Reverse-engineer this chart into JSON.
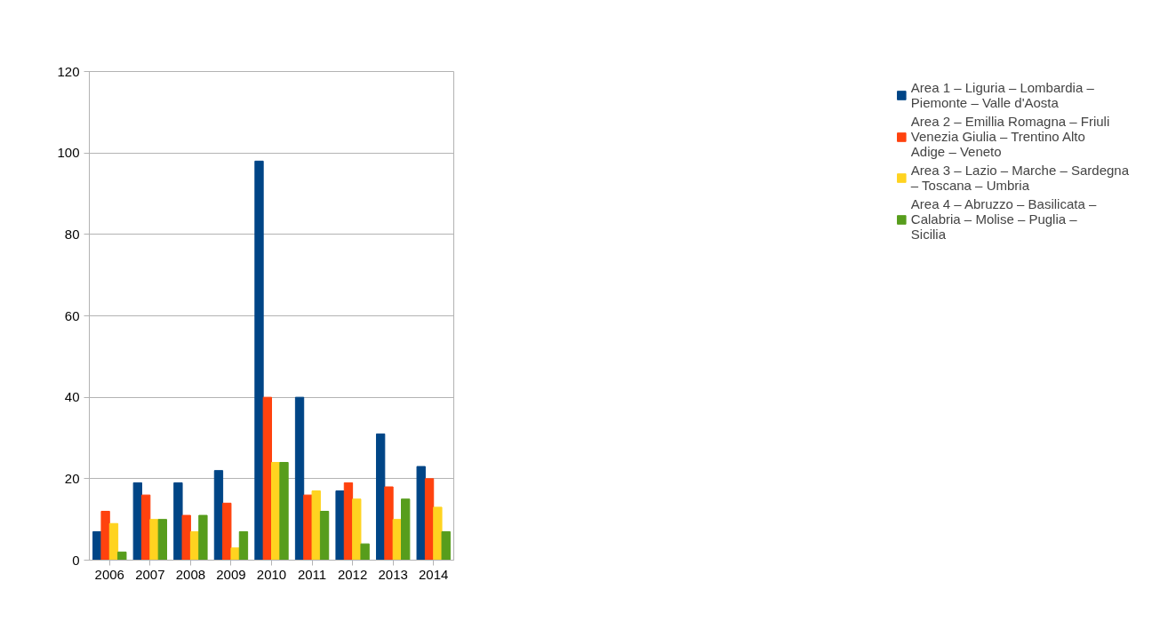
{
  "chart_data": {
    "type": "bar",
    "categories": [
      "2006",
      "2007",
      "2008",
      "2009",
      "2010",
      "2011",
      "2012",
      "2013",
      "2014"
    ],
    "series": [
      {
        "name": "Area 1 – Liguria – Lombardia – Piemonte – Valle d'Aosta",
        "color": "#004586",
        "values": [
          7,
          19,
          19,
          22,
          98,
          40,
          17,
          31,
          23
        ]
      },
      {
        "name": "Area 2 – Emillia Romagna – Friuli Venezia Giulia – Trentino Alto Adige – Veneto",
        "color": "#ff420e",
        "values": [
          12,
          16,
          11,
          14,
          40,
          16,
          19,
          18,
          20
        ]
      },
      {
        "name": "Area 3 – Lazio – Marche – Sardegna – Toscana – Umbria",
        "color": "#ffd320",
        "values": [
          9,
          10,
          7,
          3,
          24,
          17,
          15,
          10,
          13
        ]
      },
      {
        "name": "Area 4 – Abruzzo – Basilicata – Calabria – Molise – Puglia – Sicilia",
        "color": "#579d1c",
        "values": [
          2,
          10,
          11,
          7,
          24,
          12,
          4,
          15,
          7
        ]
      }
    ],
    "ylim": [
      0,
      120
    ],
    "yticks": [
      0,
      20,
      40,
      60,
      80,
      100,
      120
    ],
    "grid": "y",
    "legend": "right"
  }
}
